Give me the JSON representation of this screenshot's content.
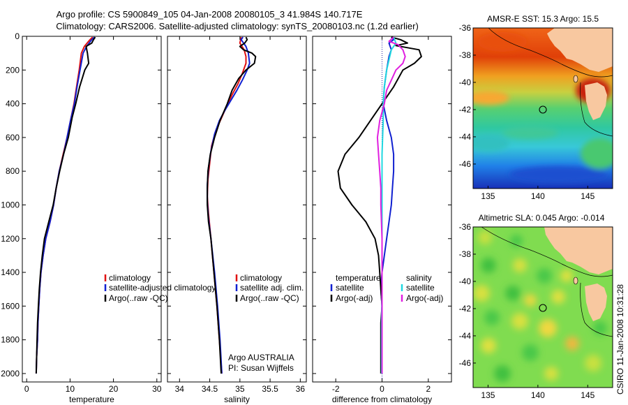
{
  "header": {
    "title_line1": "Argo profile: CS 5900849_105 04-Jan-2008 20080105_3 41.984S 140.717E",
    "title_line2": "Climatology: CARS2006. Satellite-adjusted climatology: synTS_20080103.nc (1.2d earlier)"
  },
  "footer": {
    "stamp": "CSIRO 11-Jan-2008 10:31:28",
    "agency": "Argo AUSTRALIA",
    "pi": "PI: Susan Wijffels"
  },
  "colors": {
    "climatology": "#e01010",
    "satellite": "#1020d0",
    "argo": "#000000",
    "salinity_satellite": "#20d8e0",
    "salinity_argo": "#e020e0",
    "land": "#f8c8a0"
  },
  "chart_data": [
    {
      "type": "line",
      "xlabel": "temperature",
      "ylabel": "",
      "xlim": [
        -1,
        31
      ],
      "ylim": [
        2050,
        0
      ],
      "x_ticks": [
        0,
        10,
        20,
        30
      ],
      "y_ticks": [
        0,
        200,
        400,
        600,
        800,
        1000,
        1200,
        1400,
        1600,
        1800,
        2000
      ],
      "legend": [
        "climatology",
        "satellite-adjusted climatology",
        "Argo(..raw -QC)"
      ],
      "series": [
        {
          "name": "climatology",
          "color": "#e01010",
          "points": [
            [
              15.2,
              5
            ],
            [
              14.6,
              20
            ],
            [
              13.3,
              60
            ],
            [
              12.6,
              100
            ],
            [
              12.1,
              200
            ],
            [
              11.5,
              300
            ],
            [
              10.9,
              400
            ],
            [
              10.1,
              500
            ],
            [
              9.3,
              600
            ],
            [
              8.4,
              700
            ],
            [
              7.5,
              800
            ],
            [
              6.8,
              900
            ],
            [
              6.2,
              1000
            ],
            [
              5.4,
              1100
            ],
            [
              4.4,
              1200
            ],
            [
              3.8,
              1300
            ],
            [
              3.3,
              1400
            ],
            [
              3.0,
              1500
            ],
            [
              2.8,
              1600
            ],
            [
              2.6,
              1700
            ],
            [
              2.5,
              1800
            ],
            [
              2.3,
              1900
            ],
            [
              2.2,
              2000
            ]
          ]
        },
        {
          "name": "satellite-adjusted climatology",
          "color": "#1020d0",
          "points": [
            [
              15.6,
              5
            ],
            [
              15.0,
              20
            ],
            [
              13.8,
              60
            ],
            [
              13.0,
              100
            ],
            [
              12.3,
              200
            ],
            [
              11.6,
              300
            ],
            [
              11.0,
              400
            ],
            [
              10.1,
              500
            ],
            [
              9.3,
              600
            ],
            [
              8.5,
              700
            ],
            [
              7.5,
              800
            ],
            [
              6.8,
              900
            ],
            [
              6.2,
              1000
            ],
            [
              5.4,
              1100
            ],
            [
              4.4,
              1200
            ],
            [
              3.8,
              1300
            ],
            [
              3.3,
              1400
            ],
            [
              3.0,
              1500
            ],
            [
              2.8,
              1600
            ],
            [
              2.6,
              1700
            ],
            [
              2.5,
              1800
            ],
            [
              2.3,
              1900
            ],
            [
              2.2,
              2000
            ]
          ]
        },
        {
          "name": "Argo(..raw -QC)",
          "color": "#000000",
          "points": [
            [
              15.8,
              5
            ],
            [
              15.4,
              20
            ],
            [
              15.0,
              40
            ],
            [
              13.7,
              60
            ],
            [
              14.0,
              100
            ],
            [
              14.3,
              160
            ],
            [
              13.4,
              200
            ],
            [
              12.2,
              300
            ],
            [
              11.3,
              400
            ],
            [
              10.5,
              480
            ],
            [
              9.6,
              600
            ],
            [
              8.5,
              700
            ],
            [
              7.6,
              800
            ],
            [
              6.8,
              900
            ],
            [
              6.1,
              1000
            ],
            [
              5.1,
              1100
            ],
            [
              4.1,
              1200
            ],
            [
              3.6,
              1300
            ],
            [
              3.2,
              1400
            ],
            [
              2.9,
              1500
            ],
            [
              2.7,
              1600
            ],
            [
              2.5,
              1700
            ],
            [
              2.4,
              1800
            ],
            [
              2.3,
              1900
            ],
            [
              2.2,
              2000
            ]
          ]
        }
      ]
    },
    {
      "type": "line",
      "xlabel": "salinity",
      "ylabel": "",
      "xlim": [
        33.8,
        36.1
      ],
      "ylim": [
        2050,
        0
      ],
      "x_ticks": [
        34,
        34.5,
        35,
        35.5,
        36
      ],
      "legend": [
        "climatology",
        "satellite adj. clim.",
        "Argo(..raw -QC)"
      ],
      "series": [
        {
          "name": "climatology",
          "color": "#e01010",
          "points": [
            [
              35.02,
              5
            ],
            [
              35.0,
              40
            ],
            [
              35.07,
              80
            ],
            [
              35.1,
              120
            ],
            [
              35.1,
              160
            ],
            [
              35.04,
              220
            ],
            [
              34.97,
              280
            ],
            [
              34.88,
              340
            ],
            [
              34.8,
              400
            ],
            [
              34.7,
              480
            ],
            [
              34.6,
              560
            ],
            [
              34.53,
              650
            ],
            [
              34.5,
              750
            ],
            [
              34.47,
              850
            ],
            [
              34.46,
              950
            ],
            [
              34.48,
              1050
            ],
            [
              34.52,
              1200
            ],
            [
              34.57,
              1400
            ],
            [
              34.62,
              1600
            ],
            [
              34.66,
              1800
            ],
            [
              34.7,
              2000
            ]
          ]
        },
        {
          "name": "satellite adj. clim.",
          "color": "#1020d0",
          "points": [
            [
              35.05,
              5
            ],
            [
              35.02,
              20
            ],
            [
              35.1,
              60
            ],
            [
              35.14,
              100
            ],
            [
              35.16,
              160
            ],
            [
              35.12,
              200
            ],
            [
              35.04,
              260
            ],
            [
              34.95,
              320
            ],
            [
              34.85,
              380
            ],
            [
              34.75,
              440
            ],
            [
              34.66,
              500
            ],
            [
              34.58,
              580
            ],
            [
              34.52,
              680
            ],
            [
              34.48,
              780
            ],
            [
              34.46,
              880
            ],
            [
              34.46,
              980
            ],
            [
              34.48,
              1080
            ],
            [
              34.52,
              1200
            ],
            [
              34.58,
              1400
            ],
            [
              34.63,
              1600
            ],
            [
              34.67,
              1800
            ],
            [
              34.7,
              2000
            ]
          ]
        },
        {
          "name": "Argo(..raw -QC)",
          "color": "#000000",
          "points": [
            [
              35.1,
              5
            ],
            [
              35.12,
              20
            ],
            [
              35.08,
              40
            ],
            [
              35.0,
              60
            ],
            [
              35.06,
              80
            ],
            [
              35.2,
              100
            ],
            [
              35.26,
              120
            ],
            [
              35.24,
              160
            ],
            [
              35.1,
              200
            ],
            [
              34.98,
              250
            ],
            [
              34.87,
              320
            ],
            [
              34.79,
              400
            ],
            [
              34.67,
              500
            ],
            [
              34.58,
              600
            ],
            [
              34.51,
              700
            ],
            [
              34.47,
              800
            ],
            [
              34.46,
              900
            ],
            [
              34.46,
              1000
            ],
            [
              34.48,
              1100
            ],
            [
              34.52,
              1200
            ],
            [
              34.57,
              1400
            ],
            [
              34.62,
              1600
            ],
            [
              34.66,
              1800
            ],
            [
              34.69,
              2000
            ]
          ]
        }
      ]
    },
    {
      "type": "line",
      "xlabel": "difference from climatology",
      "ylabel": "",
      "xlim": [
        -3,
        3
      ],
      "ylim": [
        2050,
        0
      ],
      "x_ticks": [
        -2,
        0,
        2
      ],
      "legend_groups": [
        {
          "title": "temperature",
          "items": [
            "satellite",
            "Argo(-adj)"
          ]
        },
        {
          "title": "salinity",
          "items": [
            "satellite",
            "Argo(-adj)"
          ]
        }
      ],
      "series": [
        {
          "name": "temperature satellite",
          "color": "#1020d0",
          "points": [
            [
              0.4,
              5
            ],
            [
              0.5,
              20
            ],
            [
              0.3,
              40
            ],
            [
              0.4,
              80
            ],
            [
              0.3,
              120
            ],
            [
              0.2,
              200
            ],
            [
              0.1,
              300
            ],
            [
              0.05,
              400
            ],
            [
              0.2,
              500
            ],
            [
              0.4,
              600
            ],
            [
              0.5,
              700
            ],
            [
              0.5,
              800
            ],
            [
              0.45,
              900
            ],
            [
              0.4,
              1000
            ],
            [
              0.3,
              1100
            ],
            [
              0.2,
              1200
            ],
            [
              0.1,
              1300
            ],
            [
              0.0,
              1400
            ],
            [
              -0.05,
              1500
            ],
            [
              0.0,
              1600
            ],
            [
              0.0,
              1700
            ],
            [
              0.0,
              1800
            ],
            [
              0.0,
              1900
            ],
            [
              0.0,
              2000
            ]
          ]
        },
        {
          "name": "temperature Argo(-adj)",
          "color": "#000000",
          "points": [
            [
              0.4,
              5
            ],
            [
              0.8,
              20
            ],
            [
              1.1,
              40
            ],
            [
              0.6,
              55
            ],
            [
              1.6,
              80
            ],
            [
              1.7,
              120
            ],
            [
              1.4,
              160
            ],
            [
              0.9,
              200
            ],
            [
              0.5,
              300
            ],
            [
              0.0,
              400
            ],
            [
              -0.5,
              500
            ],
            [
              -1.0,
              600
            ],
            [
              -1.6,
              700
            ],
            [
              -1.9,
              800
            ],
            [
              -1.8,
              900
            ],
            [
              -1.3,
              1000
            ],
            [
              -0.7,
              1100
            ],
            [
              -0.3,
              1200
            ],
            [
              -0.15,
              1300
            ],
            [
              -0.1,
              1400
            ],
            [
              -0.05,
              1500
            ],
            [
              0.0,
              1600
            ],
            [
              -0.05,
              1700
            ],
            [
              -0.05,
              1800
            ],
            [
              -0.05,
              1900
            ],
            [
              -0.05,
              2000
            ]
          ]
        },
        {
          "name": "salinity satellite",
          "color": "#20d8e0",
          "points": [
            [
              0.5,
              5
            ],
            [
              0.6,
              40
            ],
            [
              0.4,
              80
            ],
            [
              0.3,
              140
            ],
            [
              0.2,
              200
            ],
            [
              0.1,
              300
            ],
            [
              0.05,
              400
            ],
            [
              0.05,
              500
            ],
            [
              0.0,
              700
            ],
            [
              0.0,
              900
            ],
            [
              0.0,
              1100
            ],
            [
              0.0,
              1300
            ],
            [
              0.0,
              1500
            ],
            [
              -0.02,
              1700
            ],
            [
              -0.02,
              1900
            ],
            [
              -0.02,
              2000
            ]
          ]
        },
        {
          "name": "salinity Argo(-adj)",
          "color": "#e020e0",
          "points": [
            [
              0.5,
              5
            ],
            [
              0.3,
              30
            ],
            [
              0.7,
              50
            ],
            [
              0.9,
              80
            ],
            [
              1.0,
              120
            ],
            [
              0.9,
              160
            ],
            [
              0.6,
              200
            ],
            [
              0.4,
              260
            ],
            [
              0.2,
              320
            ],
            [
              0.1,
              400
            ],
            [
              -0.1,
              500
            ],
            [
              -0.2,
              600
            ],
            [
              -0.15,
              700
            ],
            [
              -0.1,
              800
            ],
            [
              -0.05,
              900
            ],
            [
              -0.05,
              1000
            ],
            [
              0.0,
              1200
            ],
            [
              0.0,
              1400
            ],
            [
              0.0,
              1600
            ],
            [
              0.0,
              1800
            ],
            [
              0.0,
              2000
            ]
          ]
        }
      ]
    },
    {
      "type": "heatmap",
      "title": "AMSR-E SST: 15.3 Argo: 15.5",
      "xlim": [
        133.5,
        147.5
      ],
      "ylim": [
        -47.8,
        -36
      ],
      "x_ticks": [
        135,
        140,
        145
      ],
      "y_ticks": [
        -36,
        -38,
        -40,
        -42,
        -44,
        -46
      ],
      "marker": {
        "lon": 140.717,
        "lat": -41.984
      }
    },
    {
      "type": "heatmap",
      "title": "Altimetric SLA: 0.045 Argo: -0.014",
      "xlim": [
        133.5,
        147.5
      ],
      "ylim": [
        -47.8,
        -36
      ],
      "x_ticks": [
        135,
        140,
        145
      ],
      "y_ticks": [
        -36,
        -38,
        -40,
        -42,
        -44,
        -46
      ],
      "marker": {
        "lon": 140.717,
        "lat": -41.984
      }
    }
  ]
}
